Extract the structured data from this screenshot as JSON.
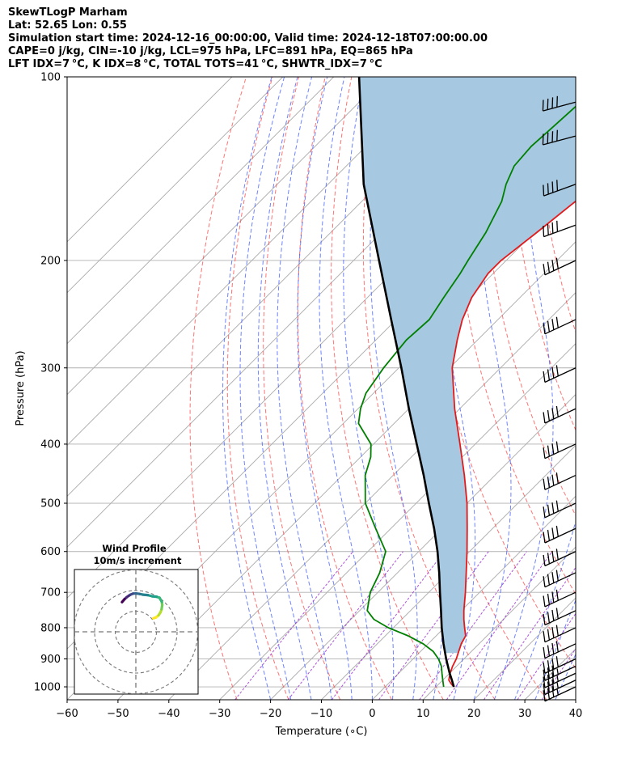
{
  "header": {
    "line1": "SkewTLogP Marham",
    "line2": "Lat: 52.65   Lon: 0.55",
    "line3": "Simulation start time: 2024-12-16_00:00:00, Valid time: 2024-12-18T07:00:00.00",
    "line4": "CAPE=0 j/kg, CIN=-10 j/kg, LCL=975 hPa, LFC=891 hPa, EQ=865 hPa",
    "line5": "LFT IDX=7$^\\circ$C, K IDX=8$^\\circ$C, TOTAL TOTS=41$^\\circ$C, SHWTR_IDX=7$^\\circ$C"
  },
  "header_display": {
    "line5": "LFT IDX=7 °C, K IDX=8 °C, TOTAL TOTS=41 °C, SHWTR_IDX=7 °C"
  },
  "chart_data": {
    "type": "skew-t log-p",
    "xlabel": "Temperature (∘C)",
    "ylabel": "Pressure (hPa)",
    "xlim": [
      -60,
      40
    ],
    "ylim": [
      1050,
      100
    ],
    "x_ticks": [
      "−60",
      "−50",
      "−40",
      "−30",
      "−20",
      "−10",
      "0",
      "10",
      "20",
      "30",
      "40"
    ],
    "y_ticks": [
      100,
      200,
      300,
      400,
      500,
      600,
      700,
      800,
      900,
      1000
    ],
    "grid": true,
    "colors": {
      "temperature": "#e31a1c",
      "dewpoint": "#008000",
      "parcel": "#000000",
      "cape_fill": "#a6c8e1",
      "dry_adiabat": "#ff4444",
      "moist_adiabat": "#3c5aff",
      "mixing_ratio": "#9a2cd0",
      "isotherm": "#aaaaaa",
      "wind_barb": "#000000"
    },
    "series": [
      {
        "key": "temperature",
        "pressure": [
          1000,
          990,
          975,
          950,
          925,
          900,
          875,
          850,
          825,
          800,
          775,
          750,
          700,
          650,
          600,
          550,
          500,
          450,
          400,
          350,
          300,
          270,
          250,
          230,
          210,
          200,
          180,
          160,
          150,
          140,
          130,
          120,
          110,
          100
        ],
        "values": [
          13.5,
          12.5,
          11.2,
          10.1,
          9.2,
          8.5,
          7.5,
          6.5,
          5.8,
          4.0,
          2.2,
          0.5,
          -2.8,
          -6.5,
          -10.5,
          -15.0,
          -20.0,
          -26.0,
          -33.0,
          -41.0,
          -49.5,
          -54.0,
          -57.0,
          -59.5,
          -61.0,
          -61.0,
          -59.5,
          -58.0,
          -57.0,
          -57.0,
          -58.0,
          -60.0,
          -62.0,
          -64.0
        ]
      },
      {
        "key": "dewpoint",
        "pressure": [
          1000,
          975,
          950,
          925,
          900,
          875,
          850,
          825,
          800,
          775,
          750,
          700,
          650,
          600,
          550,
          500,
          450,
          420,
          400,
          370,
          350,
          330,
          300,
          270,
          250,
          230,
          210,
          200,
          180,
          160,
          150,
          140,
          130,
          120,
          110,
          100
        ],
        "values": [
          11.5,
          10.0,
          8.5,
          7.0,
          5.0,
          2.5,
          -1.0,
          -5.5,
          -11.0,
          -15.5,
          -18.5,
          -21.5,
          -23.5,
          -26.5,
          -33.0,
          -40.0,
          -45.5,
          -48.0,
          -50.5,
          -57.0,
          -59.5,
          -61.5,
          -63.0,
          -64.0,
          -63.5,
          -65.0,
          -66.5,
          -67.5,
          -69.5,
          -72.5,
          -75.0,
          -77.0,
          -77.5,
          -77.0,
          -76.5,
          -76.0
        ]
      },
      {
        "key": "parcel",
        "pressure": [
          1000,
          975,
          950,
          900,
          850,
          800,
          750,
          700,
          650,
          600,
          550,
          500,
          450,
          400,
          350,
          300,
          250,
          200,
          150,
          100
        ],
        "values": [
          13.5,
          11.8,
          10.0,
          6.5,
          3.0,
          -0.5,
          -4.0,
          -7.8,
          -11.8,
          -16.3,
          -21.5,
          -27.5,
          -34.0,
          -41.5,
          -50.0,
          -59.5,
          -71.0,
          -85.0,
          -103.0,
          -125.0
        ]
      }
    ],
    "wind_barbs": {
      "pressure": [
        1000,
        975,
        950,
        925,
        900,
        850,
        800,
        750,
        700,
        650,
        600,
        550,
        500,
        450,
        400,
        350,
        300,
        250,
        200,
        175,
        150,
        125,
        110
      ],
      "speed_kt": [
        35,
        35,
        35,
        35,
        40,
        40,
        40,
        40,
        40,
        40,
        40,
        40,
        40,
        40,
        40,
        40,
        40,
        40,
        40,
        40,
        40,
        40,
        40
      ],
      "direction_deg": [
        245,
        245,
        245,
        245,
        245,
        245,
        245,
        245,
        245,
        245,
        245,
        245,
        245,
        245,
        245,
        245,
        245,
        245,
        245,
        250,
        250,
        255,
        255
      ]
    },
    "inset": {
      "title": "Wind Profile\n10m/s increment",
      "title_line1": "Wind Profile",
      "title_line2": "10m/s increment",
      "rings_ms": [
        10,
        20,
        30
      ],
      "u": [
        8.5,
        9.8,
        11.0,
        12.0,
        12.5,
        12.8,
        12.6,
        11.5,
        10.0,
        8.0,
        5.8,
        3.5,
        1.6,
        0.0,
        -1.4,
        -2.6,
        -3.4,
        -4.4,
        -5.5,
        -6.7
      ],
      "v": [
        6.5,
        7.0,
        8.0,
        9.5,
        11.0,
        13.0,
        14.5,
        16.5,
        17.0,
        17.2,
        17.8,
        18.0,
        18.4,
        18.6,
        18.5,
        18.0,
        17.5,
        16.8,
        15.8,
        14.4
      ],
      "colormap": "viridis"
    }
  }
}
